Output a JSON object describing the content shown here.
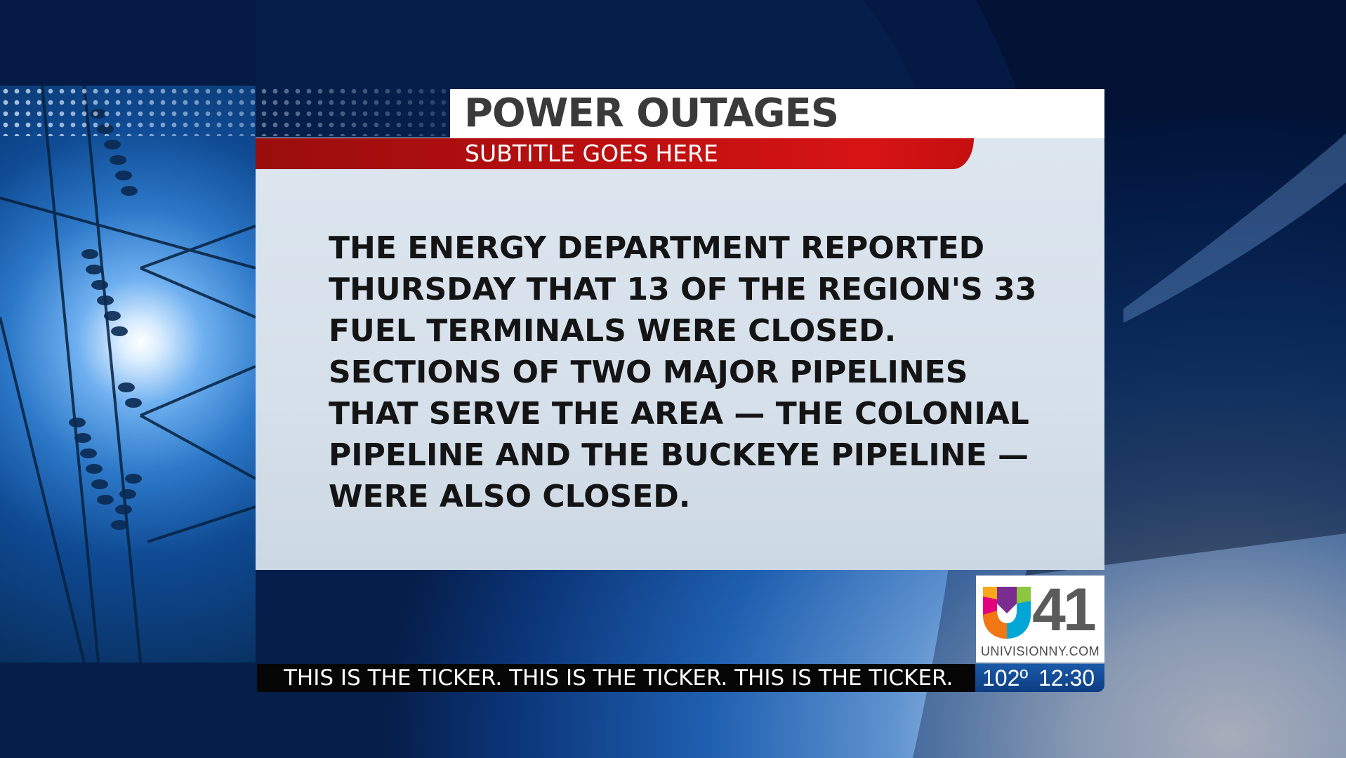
{
  "graphic": {
    "title": "POWER OUTAGES",
    "subtitle": "SUBTITLE GOES HERE",
    "body_lines": [
      "THE ENERGY DEPARTMENT REPORTED",
      "THURSDAY THAT 13 OF THE REGION'S 33",
      "FUEL TERMINALS WERE CLOSED.",
      "SECTIONS OF TWO MAJOR PIPELINES",
      "THAT SERVE THE AREA — THE COLONIAL",
      "PIPELINE AND THE BUCKEYE PIPELINE —",
      "WERE ALSO CLOSED."
    ]
  },
  "logo": {
    "number": "41",
    "url": "UNIVISIONNY.COM",
    "icon": "univision-logo-icon"
  },
  "ticker": {
    "text": "THIS IS THE TICKER. THIS IS THE TICKER. THIS IS THE TICKER."
  },
  "info": {
    "temperature": "102º",
    "time": "12:30"
  },
  "colors": {
    "title_bg": "#ffffff",
    "subtitle_red": "#c40f10",
    "panel_bg": "#d6e0ea",
    "ticker_bg": "#060606",
    "info_blue": "#1b5aa8"
  }
}
